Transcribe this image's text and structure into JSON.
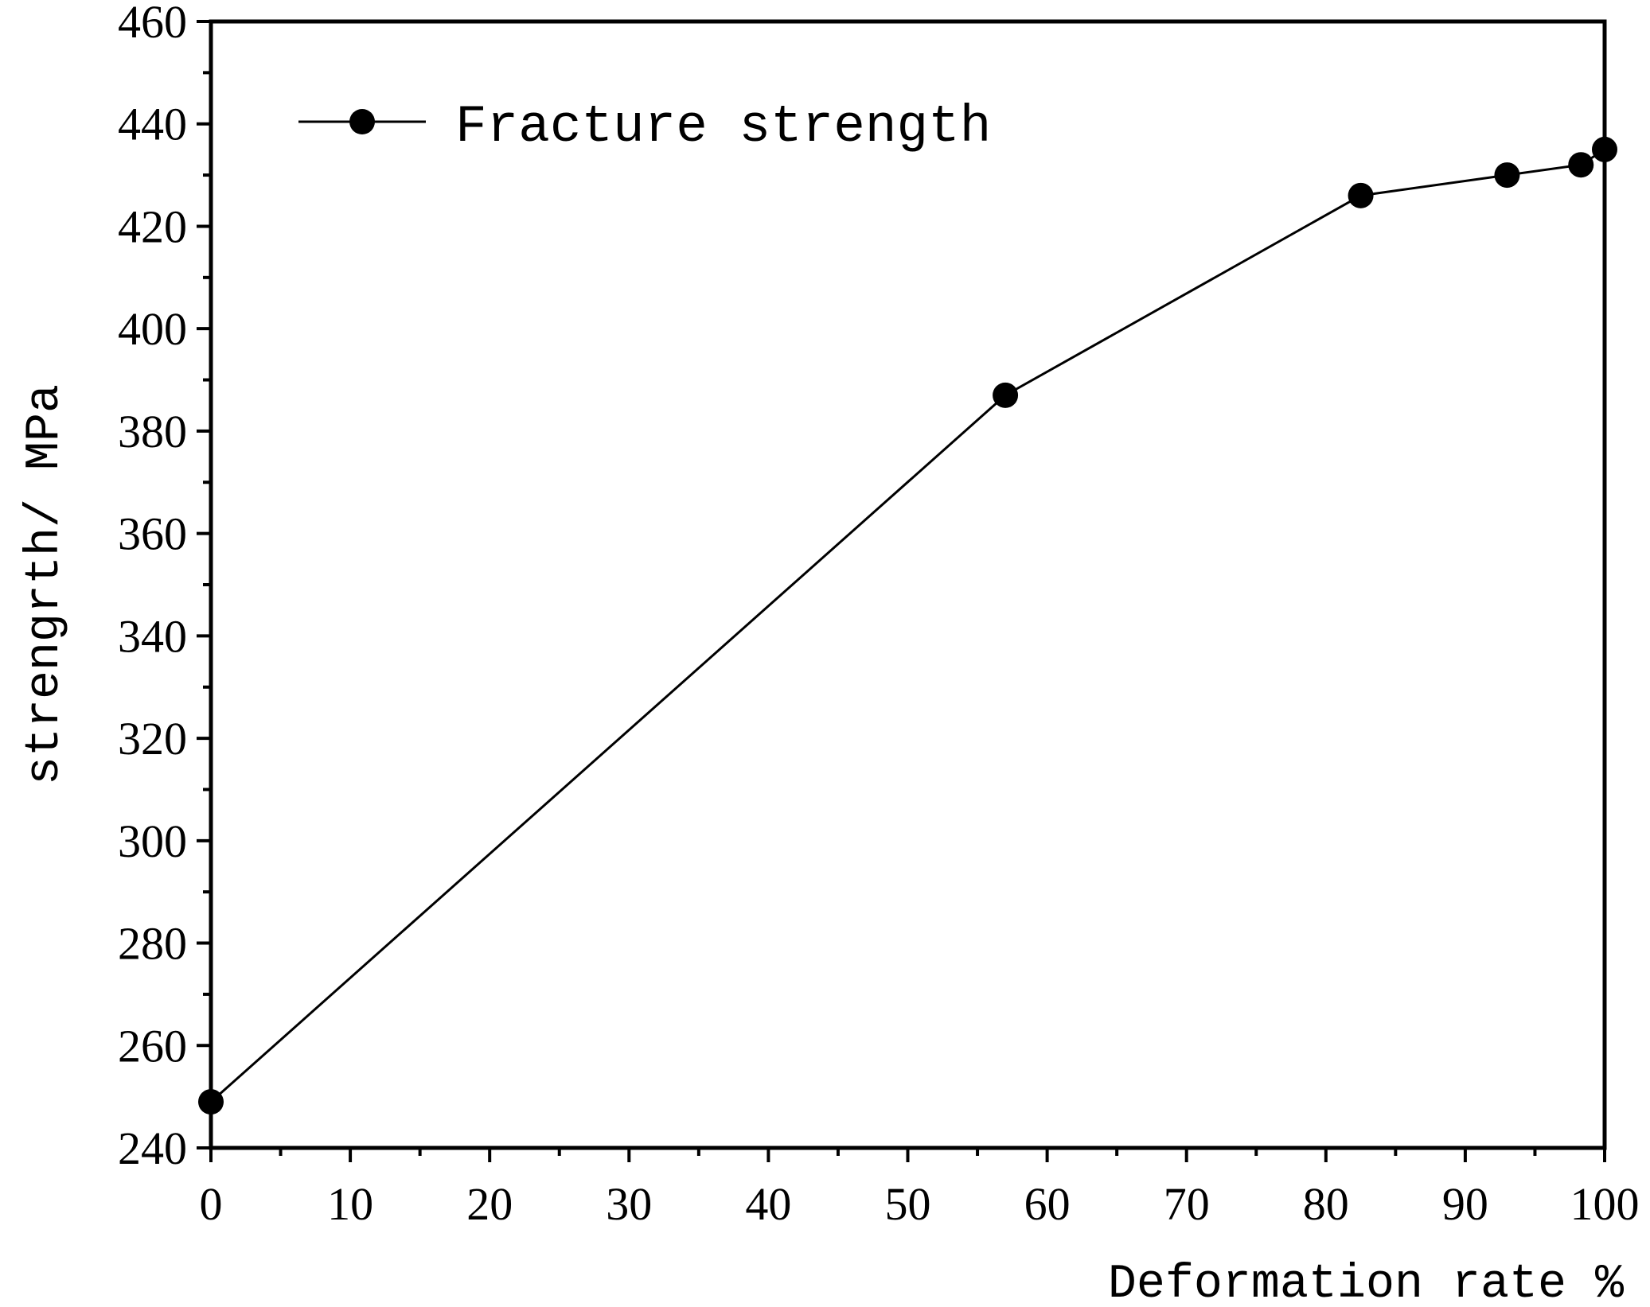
{
  "chart_data": {
    "type": "line",
    "xlabel": "Deformation rate %",
    "ylabel": "strengrth/ MPa",
    "xlim": [
      0,
      100
    ],
    "ylim": [
      240,
      460
    ],
    "x_ticks": [
      "0",
      "10",
      "20",
      "30",
      "40",
      "50",
      "60",
      "70",
      "80",
      "90",
      "100"
    ],
    "y_ticks": [
      "240",
      "260",
      "280",
      "300",
      "320",
      "340",
      "360",
      "380",
      "400",
      "420",
      "440",
      "460"
    ],
    "legend_position": "top-left",
    "grid": false,
    "series": [
      {
        "name": "Fracture strength",
        "color": "#000000",
        "marker": "filled-circle",
        "x": [
          0,
          57,
          82.5,
          93,
          98.3,
          100
        ],
        "y": [
          249,
          387,
          426,
          430,
          432,
          435
        ]
      }
    ]
  }
}
